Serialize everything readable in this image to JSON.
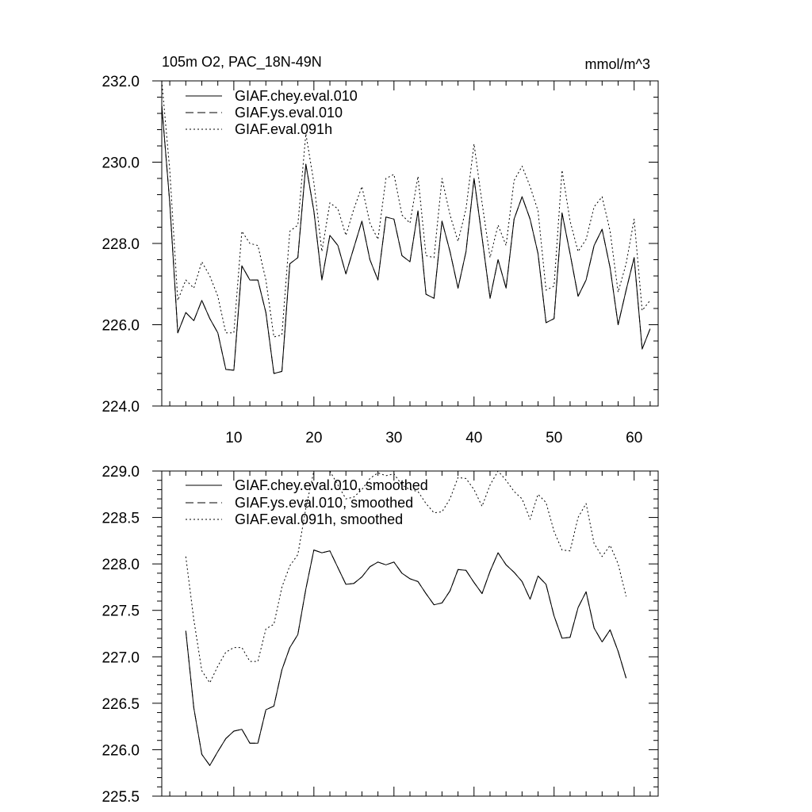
{
  "chart_data": [
    {
      "type": "line",
      "title": "105m O2, PAC_18N-49N",
      "units": "mmol/m^3",
      "xlabel": "",
      "ylabel": "",
      "xlim": [
        1,
        63
      ],
      "ylim": [
        224.0,
        232.0
      ],
      "x_ticks": [
        10,
        20,
        30,
        40,
        50,
        60
      ],
      "x_tick_labels": [
        "10",
        "20",
        "30",
        "40",
        "50",
        "60"
      ],
      "y_ticks": [
        224.0,
        226.0,
        228.0,
        230.0,
        232.0
      ],
      "y_tick_labels": [
        "224.0",
        "226.0",
        "228.0",
        "230.0",
        "232.0"
      ],
      "legend_position": "top-left",
      "x": [
        1,
        2,
        3,
        4,
        5,
        6,
        7,
        8,
        9,
        10,
        11,
        12,
        13,
        14,
        15,
        16,
        17,
        18,
        19,
        20,
        21,
        22,
        23,
        24,
        25,
        26,
        27,
        28,
        29,
        30,
        31,
        32,
        33,
        34,
        35,
        36,
        37,
        38,
        39,
        40,
        41,
        42,
        43,
        44,
        45,
        46,
        47,
        48,
        49,
        50,
        51,
        52,
        53,
        54,
        55,
        56,
        57,
        58,
        59,
        60,
        61,
        62
      ],
      "series": [
        {
          "name": "GIAF.chey.eval.010",
          "color": "#000000",
          "dash": "solid",
          "values": [
            231.4,
            229.0,
            225.8,
            226.3,
            226.1,
            226.6,
            226.15,
            225.8,
            224.9,
            224.88,
            227.45,
            227.1,
            227.1,
            226.3,
            224.8,
            224.85,
            227.5,
            227.65,
            229.95,
            228.8,
            227.1,
            228.2,
            227.95,
            227.25,
            227.9,
            228.55,
            227.6,
            227.1,
            228.65,
            228.6,
            227.7,
            227.55,
            228.8,
            226.75,
            226.65,
            228.55,
            227.8,
            226.9,
            227.8,
            229.6,
            228.15,
            226.65,
            227.6,
            226.9,
            228.6,
            229.15,
            228.6,
            227.75,
            226.05,
            226.15,
            228.75,
            227.75,
            226.7,
            227.1,
            227.95,
            228.35,
            227.4,
            226.0,
            226.85,
            227.65,
            225.4,
            225.9
          ]
        },
        {
          "name": "GIAF.ys.eval.010",
          "color": "#000000",
          "dash": "long-dash",
          "values": [
            231.4,
            229.0,
            225.8,
            226.3,
            226.1,
            226.6,
            226.15,
            225.8,
            224.9,
            224.88,
            227.45,
            227.1,
            227.1,
            226.3,
            224.8,
            224.85,
            227.5,
            227.65,
            229.95,
            228.8,
            227.1,
            228.2,
            227.95,
            227.25,
            227.9,
            228.55,
            227.6,
            227.1,
            228.65,
            228.6,
            227.7,
            227.55,
            228.8,
            226.75,
            226.65,
            228.55,
            227.8,
            226.9,
            227.8,
            229.6,
            228.15,
            226.65,
            227.6,
            226.9,
            228.6,
            229.15,
            228.6,
            227.75,
            226.05,
            226.15,
            228.75,
            227.75,
            226.7,
            227.1,
            227.95,
            228.35,
            227.4,
            226.0,
            226.85,
            227.65,
            225.4,
            225.9
          ]
        },
        {
          "name": "GIAF.eval.091h",
          "color": "#000000",
          "dash": "dotted",
          "values": [
            232.0,
            229.8,
            226.6,
            227.1,
            226.9,
            227.55,
            227.2,
            226.7,
            225.8,
            225.8,
            228.3,
            228.0,
            227.95,
            227.1,
            225.7,
            225.75,
            228.3,
            228.45,
            230.7,
            229.5,
            227.8,
            229.0,
            228.85,
            228.2,
            228.85,
            229.4,
            228.5,
            228.1,
            229.6,
            229.7,
            228.7,
            228.5,
            229.65,
            227.7,
            227.65,
            229.6,
            228.7,
            228.05,
            228.85,
            230.45,
            229.0,
            227.65,
            228.45,
            227.95,
            229.55,
            229.9,
            229.4,
            228.8,
            226.85,
            226.95,
            229.8,
            228.55,
            227.8,
            228.1,
            228.9,
            229.15,
            228.3,
            226.8,
            227.5,
            228.6,
            226.35,
            226.6
          ]
        }
      ]
    },
    {
      "type": "line",
      "title": "",
      "xlabel": "",
      "ylabel": "",
      "xlim": [
        1,
        63
      ],
      "ylim": [
        225.5,
        229.0
      ],
      "x_ticks": [
        10,
        20,
        30,
        40,
        50,
        60
      ],
      "x_tick_labels": [],
      "y_ticks": [
        225.5,
        226.0,
        226.5,
        227.0,
        227.5,
        228.0,
        228.5,
        229.0
      ],
      "y_tick_labels": [
        "225.5",
        "226.0",
        "226.5",
        "227.0",
        "227.5",
        "228.0",
        "228.5",
        "229.0"
      ],
      "legend_position": "top-left",
      "x": [
        4,
        5,
        6,
        7,
        8,
        9,
        10,
        11,
        12,
        13,
        14,
        15,
        16,
        17,
        18,
        19,
        20,
        21,
        22,
        23,
        24,
        25,
        26,
        27,
        28,
        29,
        30,
        31,
        32,
        33,
        34,
        35,
        36,
        37,
        38,
        39,
        40,
        41,
        42,
        43,
        44,
        45,
        46,
        47,
        48,
        49,
        50,
        51,
        52,
        53,
        54,
        55,
        56,
        57,
        58,
        59
      ],
      "series": [
        {
          "name": "GIAF.chey.eval.010, smoothed",
          "color": "#000000",
          "dash": "solid",
          "values": [
            227.28,
            226.45,
            225.95,
            225.83,
            225.98,
            226.12,
            226.2,
            226.22,
            226.07,
            226.07,
            226.43,
            226.47,
            226.86,
            227.1,
            227.24,
            227.73,
            228.15,
            228.12,
            228.14,
            227.96,
            227.78,
            227.79,
            227.86,
            227.97,
            228.02,
            227.99,
            228.02,
            227.9,
            227.84,
            227.81,
            227.68,
            227.56,
            227.58,
            227.71,
            227.94,
            227.93,
            227.8,
            227.68,
            227.92,
            228.12,
            227.99,
            227.91,
            227.81,
            227.62,
            227.87,
            227.78,
            227.44,
            227.2,
            227.21,
            227.53,
            227.7,
            227.31,
            227.16,
            227.29,
            227.06,
            226.77
          ]
        },
        {
          "name": "GIAF.ys.eval.010, smoothed",
          "color": "#000000",
          "dash": "long-dash",
          "values": [
            227.28,
            226.45,
            225.95,
            225.83,
            225.98,
            226.12,
            226.2,
            226.22,
            226.07,
            226.07,
            226.43,
            226.47,
            226.86,
            227.1,
            227.24,
            227.73,
            228.15,
            228.12,
            228.14,
            227.96,
            227.78,
            227.79,
            227.86,
            227.97,
            228.02,
            227.99,
            228.02,
            227.9,
            227.84,
            227.81,
            227.68,
            227.56,
            227.58,
            227.71,
            227.94,
            227.93,
            227.8,
            227.68,
            227.92,
            228.12,
            227.99,
            227.91,
            227.81,
            227.62,
            227.87,
            227.78,
            227.44,
            227.2,
            227.21,
            227.53,
            227.7,
            227.31,
            227.16,
            227.29,
            227.06,
            226.77
          ]
        },
        {
          "name": "GIAF.eval.091h, smoothed",
          "color": "#000000",
          "dash": "dotted",
          "values": [
            228.08,
            227.4,
            226.85,
            226.72,
            226.9,
            227.05,
            227.1,
            227.1,
            226.95,
            226.95,
            227.3,
            227.35,
            227.75,
            227.98,
            228.1,
            228.6,
            229.0,
            229.0,
            229.0,
            228.85,
            228.7,
            228.72,
            228.8,
            228.92,
            228.98,
            228.95,
            228.97,
            228.85,
            228.8,
            228.78,
            228.65,
            228.55,
            228.56,
            228.7,
            228.93,
            228.92,
            228.8,
            228.62,
            228.85,
            229.0,
            228.9,
            228.78,
            228.7,
            228.48,
            228.75,
            228.66,
            228.35,
            228.15,
            228.14,
            228.5,
            228.65,
            228.22,
            228.08,
            228.2,
            228.0,
            227.65
          ]
        }
      ]
    }
  ]
}
